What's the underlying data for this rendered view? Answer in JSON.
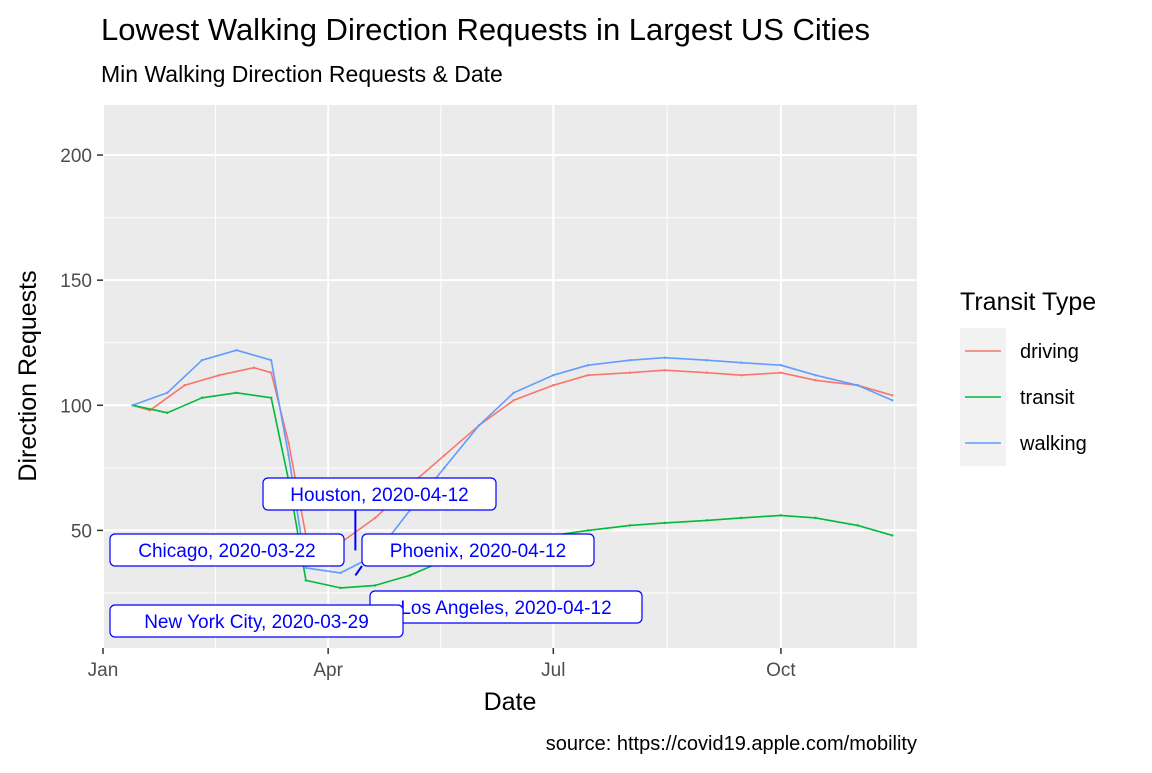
{
  "chart_data": {
    "type": "line",
    "title": "Lowest Walking Direction Requests in Largest US Cities",
    "subtitle": "Min Walking Direction Requests & Date",
    "xlabel": "Date",
    "ylabel": "Direction Requests",
    "caption": "source: https://covid19.apple.com/mobility",
    "x_range": [
      "2020-01-01",
      "2020-11-25"
    ],
    "ylim": [
      3,
      220
    ],
    "x_ticks": [
      {
        "date": "2020-01-01",
        "label": "Jan"
      },
      {
        "date": "2020-04-01",
        "label": "Apr"
      },
      {
        "date": "2020-07-01",
        "label": "Jul"
      },
      {
        "date": "2020-10-01",
        "label": "Oct"
      }
    ],
    "y_ticks": [
      50,
      100,
      150,
      200
    ],
    "grid": true,
    "legend": {
      "title": "Transit Type",
      "position": "right",
      "entries": [
        "driving",
        "transit",
        "walking"
      ]
    },
    "colors": {
      "driving": "#F8766D",
      "transit": "#00BA38",
      "walking": "#619CFF",
      "annotation": "#0000FF"
    },
    "series": [
      {
        "name": "driving",
        "points": [
          [
            "2020-01-13",
            100
          ],
          [
            "2020-01-20",
            98
          ],
          [
            "2020-02-03",
            108
          ],
          [
            "2020-02-17",
            112
          ],
          [
            "2020-03-02",
            115
          ],
          [
            "2020-03-09",
            113
          ],
          [
            "2020-03-16",
            85
          ],
          [
            "2020-03-23",
            48
          ],
          [
            "2020-04-06",
            45
          ],
          [
            "2020-04-20",
            55
          ],
          [
            "2020-05-04",
            68
          ],
          [
            "2020-05-18",
            80
          ],
          [
            "2020-06-01",
            92
          ],
          [
            "2020-06-15",
            102
          ],
          [
            "2020-07-01",
            108
          ],
          [
            "2020-07-15",
            112
          ],
          [
            "2020-08-01",
            113
          ],
          [
            "2020-08-15",
            114
          ],
          [
            "2020-09-01",
            113
          ],
          [
            "2020-09-15",
            112
          ],
          [
            "2020-10-01",
            113
          ],
          [
            "2020-10-15",
            110
          ],
          [
            "2020-11-01",
            108
          ],
          [
            "2020-11-15",
            104
          ]
        ]
      },
      {
        "name": "transit",
        "points": [
          [
            "2020-01-13",
            100
          ],
          [
            "2020-01-27",
            97
          ],
          [
            "2020-02-10",
            103
          ],
          [
            "2020-02-24",
            105
          ],
          [
            "2020-03-09",
            103
          ],
          [
            "2020-03-16",
            70
          ],
          [
            "2020-03-23",
            30
          ],
          [
            "2020-04-06",
            27
          ],
          [
            "2020-04-20",
            28
          ],
          [
            "2020-05-04",
            32
          ],
          [
            "2020-05-18",
            38
          ],
          [
            "2020-06-01",
            43
          ],
          [
            "2020-06-15",
            46
          ],
          [
            "2020-07-01",
            48
          ],
          [
            "2020-07-15",
            50
          ],
          [
            "2020-08-01",
            52
          ],
          [
            "2020-08-15",
            53
          ],
          [
            "2020-09-01",
            54
          ],
          [
            "2020-09-15",
            55
          ],
          [
            "2020-10-01",
            56
          ],
          [
            "2020-10-15",
            55
          ],
          [
            "2020-11-01",
            52
          ],
          [
            "2020-11-15",
            48
          ]
        ]
      },
      {
        "name": "walking",
        "points": [
          [
            "2020-01-13",
            100
          ],
          [
            "2020-01-27",
            105
          ],
          [
            "2020-02-10",
            118
          ],
          [
            "2020-02-24",
            122
          ],
          [
            "2020-03-09",
            118
          ],
          [
            "2020-03-16",
            80
          ],
          [
            "2020-03-23",
            35
          ],
          [
            "2020-04-06",
            33
          ],
          [
            "2020-04-20",
            40
          ],
          [
            "2020-05-04",
            58
          ],
          [
            "2020-05-18",
            75
          ],
          [
            "2020-06-01",
            92
          ],
          [
            "2020-06-15",
            105
          ],
          [
            "2020-07-01",
            112
          ],
          [
            "2020-07-15",
            116
          ],
          [
            "2020-08-01",
            118
          ],
          [
            "2020-08-15",
            119
          ],
          [
            "2020-09-01",
            118
          ],
          [
            "2020-09-15",
            117
          ],
          [
            "2020-10-01",
            116
          ],
          [
            "2020-10-15",
            112
          ],
          [
            "2020-11-01",
            108
          ],
          [
            "2020-11-15",
            102
          ]
        ]
      }
    ],
    "annotations": [
      {
        "label": "Houston, 2020-04-12",
        "date": "2020-04-12",
        "value": 42
      },
      {
        "label": "Chicago, 2020-03-22",
        "date": "2020-03-22",
        "value": 42
      },
      {
        "label": "Phoenix, 2020-04-12",
        "date": "2020-04-12",
        "value": 32
      },
      {
        "label": "Los Angeles, 2020-04-12",
        "date": "2020-04-12",
        "value": 19
      },
      {
        "label": "New York City, 2020-03-29",
        "date": "2020-03-29",
        "value": 12
      }
    ]
  }
}
